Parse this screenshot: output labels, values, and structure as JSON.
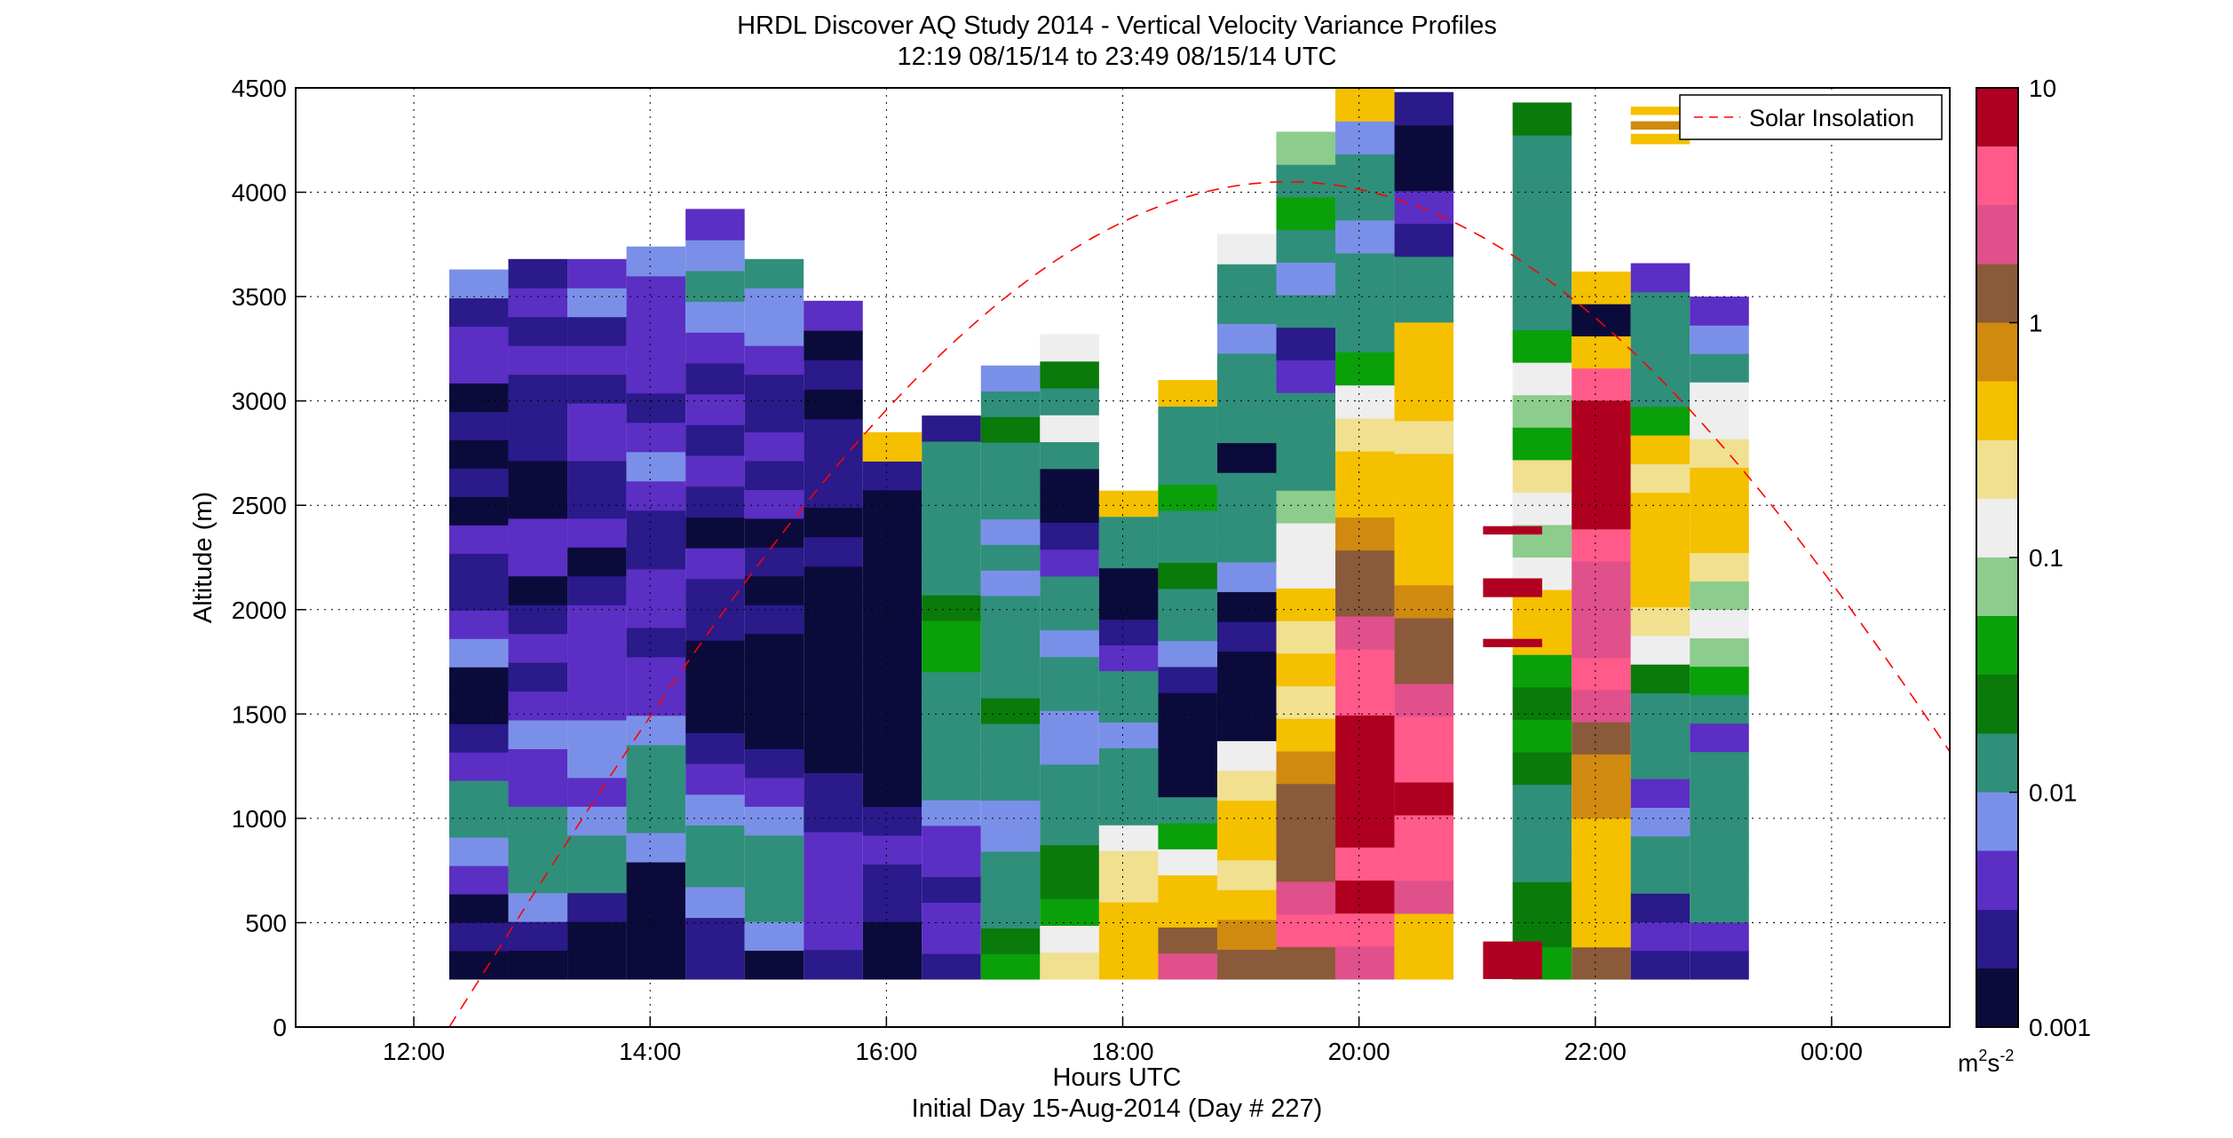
{
  "chart_data": {
    "type": "heatmap",
    "title": "HRDL Discover AQ Study 2014 - Vertical Velocity Variance Profiles",
    "subtitle": "12:19 08/15/14 to 23:49 08/15/14  UTC",
    "xlabel": "Hours UTC",
    "footer": "Initial Day 15-Aug-2014 (Day # 227)",
    "ylabel": "Altitude (m)",
    "colorbar_unit_base": "m",
    "colorbar_unit_exp1": "2",
    "colorbar_unit_mid": "s",
    "colorbar_unit_exp2": "-2",
    "x_range_hours": [
      11,
      25
    ],
    "x_ticks": [
      12,
      14,
      16,
      18,
      20,
      22,
      24
    ],
    "x_tick_labels": [
      "12:00",
      "14:00",
      "16:00",
      "18:00",
      "20:00",
      "22:00",
      "00:00"
    ],
    "y_range": [
      0,
      4500
    ],
    "y_ticks": [
      0,
      500,
      1000,
      1500,
      2000,
      2500,
      3000,
      3500,
      4000,
      4500
    ],
    "y_tick_labels": [
      "0",
      "500",
      "1000",
      "1500",
      "2000",
      "2500",
      "3000",
      "3500",
      "4000",
      "4500"
    ],
    "colorbar": {
      "scale": "log",
      "range": [
        0.001,
        10
      ],
      "ticks": [
        0.001,
        0.01,
        0.1,
        1,
        10
      ],
      "tick_labels": [
        "0.001",
        "0.01",
        "0.1",
        "1",
        "10"
      ],
      "colors": [
        "#0b0b3b",
        "#2a1a8a",
        "#5b2ec4",
        "#7a90e8",
        "#2f8f7a",
        "#0a7a0a",
        "#0aa00a",
        "#8ccc8c",
        "#eeeeee",
        "#f0e090",
        "#f5c000",
        "#d08a10",
        "#8a5a3a",
        "#e0508a",
        "#ff5a8a",
        "#b00020"
      ]
    },
    "grid": true,
    "legend": {
      "position": "top-right",
      "entries": [
        "Solar Insolation"
      ]
    },
    "solar_insolation": {
      "style": "dashed",
      "color": "#ff0000",
      "start_hour": 12.3,
      "end_hour": 25,
      "peak_hour": 19.4,
      "peak_altitude_m": 4050
    },
    "profiles": [
      {
        "t": 12.55,
        "bottom": 230,
        "top": 3630,
        "levels": [
          -2.9,
          -2.6,
          -2.8,
          -2.4,
          -2.1,
          -2.0,
          -1.9,
          -2.5,
          -2.6,
          -2.9,
          -2.8,
          -2.2,
          -2.4,
          -2.6,
          -2.7,
          -2.5,
          -2.8,
          -2.6,
          -2.9,
          -2.7,
          -2.8,
          -2.5,
          -2.3,
          -2.6,
          -2.2
        ]
      },
      {
        "t": 13.05,
        "bottom": 230,
        "top": 3680,
        "levels": [
          -2.8,
          -2.7,
          -2.1,
          -1.9,
          -2.0,
          -1.8,
          -2.3,
          -2.4,
          -2.2,
          -2.5,
          -2.6,
          -2.4,
          -2.7,
          -2.8,
          -2.3,
          -2.5,
          -2.9,
          -2.8,
          -2.6,
          -2.6,
          -2.7,
          -2.4,
          -2.6,
          -2.3,
          -2.7
        ]
      },
      {
        "t": 13.55,
        "bottom": 230,
        "top": 3680,
        "levels": [
          -2.8,
          -2.9,
          -2.6,
          -2.0,
          -1.9,
          -2.2,
          -2.4,
          -2.2,
          -2.1,
          -2.3,
          -2.4,
          -2.5,
          -2.4,
          -2.6,
          -2.8,
          -2.5,
          -2.7,
          -2.6,
          -2.4,
          -2.5,
          -2.7,
          -2.4,
          -2.6,
          -2.2,
          -2.5
        ]
      },
      {
        "t": 14.05,
        "bottom": 230,
        "top": 3740,
        "levels": [
          -2.9,
          -2.9,
          -2.8,
          -2.9,
          -2.2,
          -1.9,
          -2.0,
          -1.8,
          -2.1,
          -2.3,
          -2.5,
          -2.6,
          -2.4,
          -2.3,
          -2.6,
          -2.7,
          -2.4,
          -2.2,
          -2.5,
          -2.6,
          -2.3,
          -2.4,
          -2.5,
          -2.4,
          -2.2
        ]
      },
      {
        "t": 14.55,
        "bottom": 230,
        "top": 3920,
        "levels": [
          -2.7,
          -2.6,
          -2.2,
          -1.9,
          -2.0,
          -2.1,
          -2.4,
          -2.6,
          -2.8,
          -2.9,
          -2.9,
          -2.7,
          -2.6,
          -2.5,
          -2.8,
          -2.6,
          -2.4,
          -2.7,
          -2.5,
          -2.6,
          -2.3,
          -2.1,
          -1.9,
          -2.2,
          -2.4
        ]
      },
      {
        "t": 15.05,
        "bottom": 230,
        "top": 3680,
        "levels": [
          -2.8,
          -2.2,
          -1.9,
          -2.0,
          -1.8,
          -2.1,
          -2.4,
          -2.7,
          -2.9,
          -2.9,
          -2.8,
          -2.9,
          -2.7,
          -2.9,
          -2.6,
          -2.8,
          -2.5,
          -2.7,
          -2.4,
          -2.6,
          -2.6,
          -2.5,
          -2.2,
          -2.1,
          -2.0
        ]
      },
      {
        "t": 15.55,
        "bottom": 230,
        "top": 3480,
        "levels": [
          -2.7,
          -2.5,
          -2.3,
          -2.4,
          -2.5,
          -2.6,
          -2.7,
          -2.9,
          -2.9,
          -2.9,
          -2.8,
          -2.9,
          -2.9,
          -2.9,
          -2.7,
          -2.8,
          -2.6,
          -2.7,
          -2.6,
          -2.9,
          -2.6,
          -2.8,
          -2.5
        ]
      },
      {
        "t": 16.05,
        "bottom": 230,
        "top": 2850,
        "levels": [
          -2.9,
          -2.8,
          -2.7,
          -2.6,
          -2.5,
          -2.7,
          -2.9,
          -2.9,
          -2.8,
          -2.9,
          -2.9,
          -2.8,
          -2.9,
          -2.9,
          -2.9,
          -2.9,
          -2.8,
          -2.7,
          -0.4
        ]
      },
      {
        "t": 16.55,
        "bottom": 230,
        "top": 2930,
        "levels": [
          -2.6,
          -2.4,
          -2.5,
          -2.6,
          -2.3,
          -2.4,
          -2.1,
          -2.0,
          -1.9,
          -1.9,
          -1.8,
          -1.9,
          -1.5,
          -1.4,
          -1.6,
          -1.8,
          -1.9,
          -1.8,
          -1.9,
          -2.0,
          -1.9,
          -2.6
        ]
      },
      {
        "t": 17.05,
        "bottom": 230,
        "top": 3170,
        "levels": [
          -1.4,
          -1.6,
          -1.8,
          -1.9,
          -2.0,
          -2.1,
          -2.2,
          -2.0,
          -1.9,
          -1.8,
          -1.6,
          -1.9,
          -1.8,
          -1.9,
          -2.0,
          -2.2,
          -1.9,
          -2.1,
          -1.9,
          -1.8,
          -2.0,
          -1.7,
          -1.9,
          -2.2
        ]
      },
      {
        "t": 17.55,
        "bottom": 230,
        "top": 3320,
        "levels": [
          -0.7,
          -0.9,
          -1.5,
          -1.6,
          -1.7,
          -1.8,
          -1.9,
          -2.0,
          -2.1,
          -2.2,
          -1.9,
          -1.9,
          -2.2,
          -2.0,
          -1.9,
          -2.4,
          -2.6,
          -2.8,
          -2.9,
          -2.0,
          -1.0,
          -1.8,
          -1.6,
          -0.8
        ]
      },
      {
        "t": 18.05,
        "bottom": 230,
        "top": 2570,
        "levels": [
          -0.4,
          -0.3,
          -0.5,
          -0.7,
          -0.6,
          -1.0,
          -1.8,
          -1.9,
          -2.0,
          -2.1,
          -1.9,
          -1.8,
          -2.4,
          -2.6,
          -2.8,
          -2.9,
          -1.9,
          -1.8,
          -0.5
        ]
      },
      {
        "t": 18.55,
        "bottom": 230,
        "top": 3100,
        "levels": [
          0.3,
          0.1,
          -0.3,
          -0.5,
          -0.9,
          -1.3,
          -1.8,
          -2.8,
          -2.9,
          -2.8,
          -2.9,
          -2.7,
          -2.1,
          -1.9,
          -1.8,
          -1.7,
          -1.9,
          -1.8,
          -1.5,
          -2.0,
          -1.8,
          -1.9,
          -0.3
        ]
      },
      {
        "t": 19.05,
        "bottom": 230,
        "top": 3800,
        "levels": [
          0.0,
          -0.2,
          -0.4,
          -0.6,
          -0.5,
          -0.4,
          -0.6,
          -0.8,
          -2.9,
          -2.8,
          -2.9,
          -2.7,
          -2.9,
          -2.2,
          -1.9,
          -2.0,
          -1.9,
          -2.8,
          -1.9,
          -2.0,
          -1.8,
          -2.1,
          -1.9,
          -2.0,
          -0.8
        ]
      },
      {
        "t": 19.55,
        "bottom": 230,
        "top": 4290,
        "levels": [
          0.2,
          0.5,
          0.3,
          0.1,
          0.2,
          0.0,
          -0.2,
          -0.5,
          -0.6,
          -0.4,
          -0.7,
          -0.5,
          -0.9,
          -0.8,
          -1.2,
          -1.8,
          -1.9,
          -2.0,
          -2.4,
          -2.6,
          -1.9,
          -2.1,
          -1.8,
          -1.5,
          -2.0,
          -1.1
        ]
      },
      {
        "t": 20.05,
        "bottom": 230,
        "top": 4500,
        "levels": [
          0.3,
          0.6,
          0.8,
          0.7,
          0.9,
          1.0,
          0.8,
          0.9,
          0.7,
          0.5,
          0.3,
          0.1,
          0.0,
          -0.2,
          -0.4,
          -0.5,
          -0.7,
          -1.0,
          -1.4,
          -1.8,
          -1.9,
          -2.0,
          -2.2,
          -1.8,
          -1.9,
          -2.2,
          -0.4
        ]
      },
      {
        "t": 20.55,
        "bottom": 230,
        "top": 4480,
        "levels": [
          -0.5,
          -0.4,
          0.3,
          0.5,
          0.6,
          0.8,
          0.7,
          0.6,
          0.4,
          0.2,
          0.1,
          -0.2,
          -0.5,
          -0.3,
          -0.4,
          -0.5,
          -0.6,
          -0.4,
          -0.5,
          -0.3,
          -1.8,
          -2.0,
          -2.6,
          -2.4,
          -2.8,
          -2.9,
          -2.7
        ]
      },
      {
        "t": 21.55,
        "bottom": 230,
        "top": 4430,
        "levels": [
          -1.5,
          -1.6,
          -1.7,
          -1.8,
          -1.9,
          -1.8,
          -1.6,
          -1.5,
          -1.7,
          -1.4,
          -0.5,
          -0.4,
          -1.0,
          -1.2,
          -0.8,
          -0.6,
          -1.4,
          -1.2,
          -1.0,
          -1.5,
          -1.8,
          -1.9,
          -1.8,
          -2.0,
          -1.8,
          -1.9,
          -1.7
        ]
      },
      {
        "t": 22.05,
        "bottom": 230,
        "top": 3620,
        "levels": [
          0.2,
          -0.4,
          -0.5,
          -0.3,
          -0.4,
          -0.2,
          -0.1,
          0.0,
          0.3,
          0.5,
          0.4,
          0.3,
          0.4,
          0.6,
          0.9,
          1.0,
          0.9,
          0.8,
          0.7,
          -0.5,
          -2.8,
          -0.4
        ]
      },
      {
        "t": 22.55,
        "bottom": 230,
        "top": 3660,
        "levels": [
          -2.6,
          -2.5,
          -2.7,
          -2.0,
          -1.9,
          -2.1,
          -2.3,
          -1.9,
          -1.8,
          -1.9,
          -1.6,
          -1.0,
          -0.6,
          -0.5,
          -0.5,
          -0.4,
          -0.5,
          -0.6,
          -0.5,
          -1.4,
          -1.8,
          -1.9,
          -2.0,
          -1.8,
          -2.5
        ]
      },
      {
        "t": 23.05,
        "bottom": 230,
        "top": 3500,
        "levels": [
          -2.6,
          -2.4,
          -2.0,
          -1.9,
          -1.8,
          -2.0,
          -1.9,
          -1.8,
          -2.3,
          -1.9,
          -1.4,
          -1.1,
          -0.9,
          -1.2,
          -0.7,
          -0.5,
          -0.4,
          -0.5,
          -0.6,
          -1.0,
          -0.9,
          -1.8,
          -2.2,
          -2.4
        ]
      }
    ],
    "sparse_segments": [
      {
        "t": 21.3,
        "bottom": 230,
        "top": 410,
        "level": 1.0
      },
      {
        "t": 21.3,
        "bottom": 1820,
        "top": 1860,
        "level": 1.0
      },
      {
        "t": 21.3,
        "bottom": 2060,
        "top": 2150,
        "level": 1.0
      },
      {
        "t": 21.3,
        "bottom": 2360,
        "top": 2400,
        "level": 1.0
      },
      {
        "t": 22.55,
        "bottom": 4230,
        "top": 4280,
        "level": -0.4
      },
      {
        "t": 22.55,
        "bottom": 4300,
        "top": 4340,
        "level": -0.2
      },
      {
        "t": 22.55,
        "bottom": 4370,
        "top": 4410,
        "level": -0.4
      }
    ]
  }
}
